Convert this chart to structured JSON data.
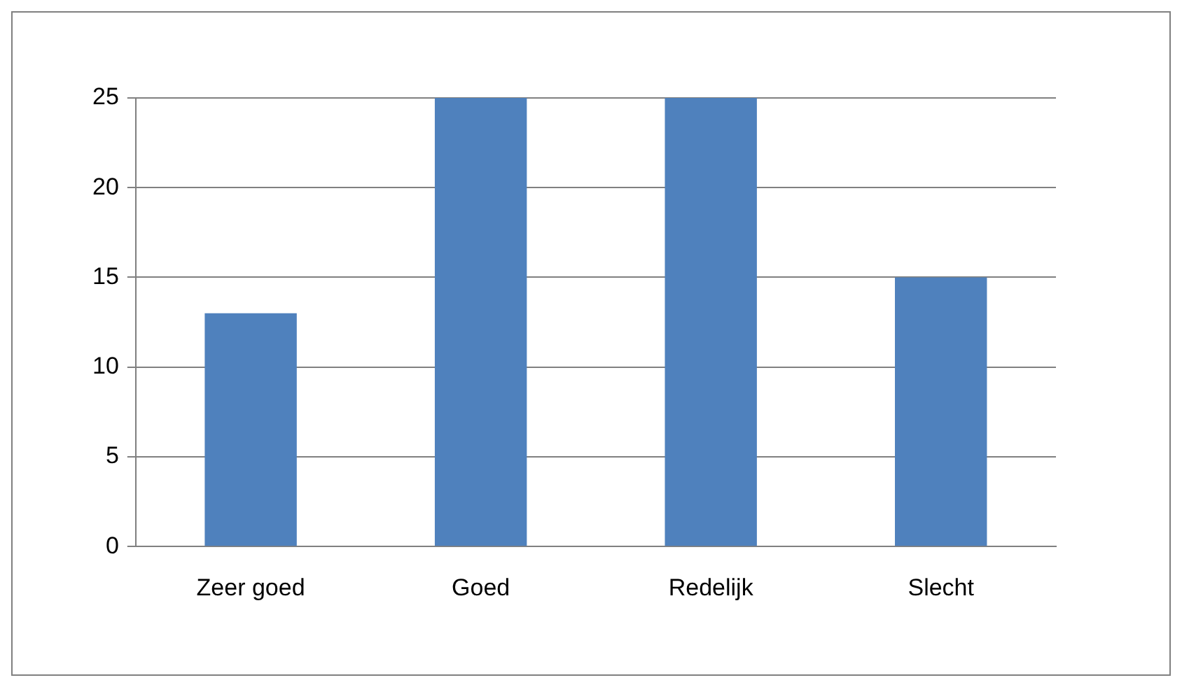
{
  "chart_data": {
    "type": "bar",
    "categories": [
      "Zeer goed",
      "Goed",
      "Redelijk",
      "Slecht"
    ],
    "values": [
      13,
      25,
      25,
      15
    ],
    "color": "#4f81bd",
    "ylim": [
      0,
      25
    ],
    "yticks": [
      0,
      5,
      10,
      15,
      20,
      25
    ],
    "grid": "y",
    "legend": false
  }
}
